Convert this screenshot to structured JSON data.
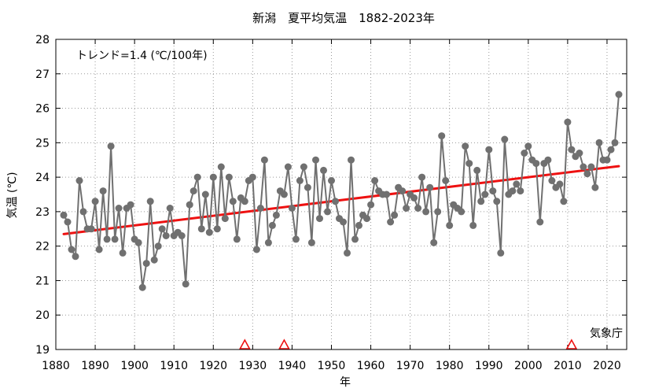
{
  "chart_data": {
    "type": "line",
    "title": "新潟　夏平均気温　1882-2023年",
    "xlabel": "年",
    "ylabel": "気温 (℃)",
    "xlim": [
      1880,
      2025
    ],
    "ylim": [
      19,
      28
    ],
    "xticks": [
      1880,
      1890,
      1900,
      1910,
      1920,
      1930,
      1940,
      1950,
      1960,
      1970,
      1980,
      1990,
      2000,
      2010,
      2020
    ],
    "yticks": [
      19,
      20,
      21,
      22,
      23,
      24,
      25,
      26,
      27,
      28
    ],
    "trend_label": "トレンド=1.4 (℃/100年)",
    "source_label": "気象庁",
    "series": [
      {
        "x": [
          1882,
          1883,
          1884,
          1885,
          1886,
          1887,
          1888,
          1889,
          1890,
          1891,
          1892,
          1893,
          1894,
          1895,
          1896,
          1897,
          1898,
          1899,
          1900,
          1901,
          1902,
          1903,
          1904,
          1905,
          1906,
          1907,
          1908,
          1909,
          1910,
          1911,
          1912,
          1913,
          1914,
          1915,
          1916,
          1917,
          1918,
          1919,
          1920,
          1921,
          1922,
          1923,
          1924,
          1925,
          1926,
          1927,
          1928,
          1929,
          1930,
          1931,
          1932,
          1933,
          1934,
          1935,
          1936,
          1937,
          1938,
          1939,
          1940,
          1941,
          1942,
          1943,
          1944,
          1945,
          1946,
          1947,
          1948,
          1949,
          1950,
          1951,
          1952,
          1953,
          1954,
          1955,
          1956,
          1957,
          1958,
          1959,
          1960,
          1961,
          1962,
          1963,
          1964,
          1965,
          1966,
          1967,
          1968,
          1969,
          1970,
          1971,
          1972,
          1973,
          1974,
          1975,
          1976,
          1977,
          1978,
          1979,
          1980,
          1981,
          1982,
          1983,
          1984,
          1985,
          1986,
          1987,
          1988,
          1989,
          1990,
          1991,
          1992,
          1993,
          1994,
          1995,
          1996,
          1997,
          1998,
          1999,
          2000,
          2001,
          2002,
          2003,
          2004,
          2005,
          2006,
          2007,
          2008,
          2009,
          2010,
          2011,
          2012,
          2013,
          2014,
          2015,
          2016,
          2017,
          2018,
          2019,
          2020,
          2021,
          2022,
          2023
        ],
        "values": [
          22.9,
          22.7,
          21.9,
          21.7,
          23.9,
          23.0,
          22.5,
          22.5,
          23.3,
          21.9,
          23.6,
          22.2,
          24.9,
          22.2,
          23.1,
          21.8,
          23.1,
          23.2,
          22.2,
          22.1,
          20.8,
          21.5,
          23.3,
          21.6,
          22.0,
          22.5,
          22.3,
          23.1,
          22.3,
          22.4,
          22.3,
          20.9,
          23.2,
          23.6,
          24.0,
          22.5,
          23.5,
          22.4,
          24.0,
          22.5,
          24.3,
          22.8,
          24.0,
          23.3,
          22.2,
          23.4,
          23.3,
          23.9,
          24.0,
          21.9,
          23.1,
          24.5,
          22.1,
          22.6,
          22.9,
          23.6,
          23.5,
          24.3,
          23.1,
          22.2,
          23.9,
          24.3,
          23.7,
          22.1,
          24.5,
          22.8,
          24.2,
          23.0,
          23.9,
          23.3,
          22.8,
          22.7,
          21.8,
          24.5,
          22.2,
          22.6,
          22.9,
          22.8,
          23.2,
          23.9,
          23.6,
          23.5,
          23.5,
          22.7,
          22.9,
          23.7,
          23.6,
          23.1,
          23.5,
          23.4,
          23.1,
          24.0,
          23.0,
          23.7,
          22.1,
          23.0,
          25.2,
          23.9,
          22.6,
          23.2,
          23.1,
          23.0,
          24.9,
          24.4,
          22.6,
          24.2,
          23.3,
          23.5,
          24.8,
          23.6,
          23.3,
          21.8,
          25.1,
          23.5,
          23.6,
          23.8,
          23.6,
          24.7,
          24.9,
          24.5,
          24.4,
          22.7,
          24.4,
          24.5,
          23.9,
          23.7,
          23.8,
          23.3,
          25.6,
          24.8,
          24.6,
          24.7,
          24.3,
          24.1,
          24.3,
          23.7,
          25.0,
          24.5,
          24.5,
          24.8,
          25.0,
          26.4
        ],
        "color": "#707070"
      }
    ],
    "trend_line": {
      "x": [
        1882,
        2023
      ],
      "values": [
        22.35,
        24.32
      ],
      "color": "#ee1111"
    },
    "markers": {
      "type": "triangle",
      "x": [
        1928,
        1938,
        2011
      ],
      "color": "#ee1111"
    }
  }
}
